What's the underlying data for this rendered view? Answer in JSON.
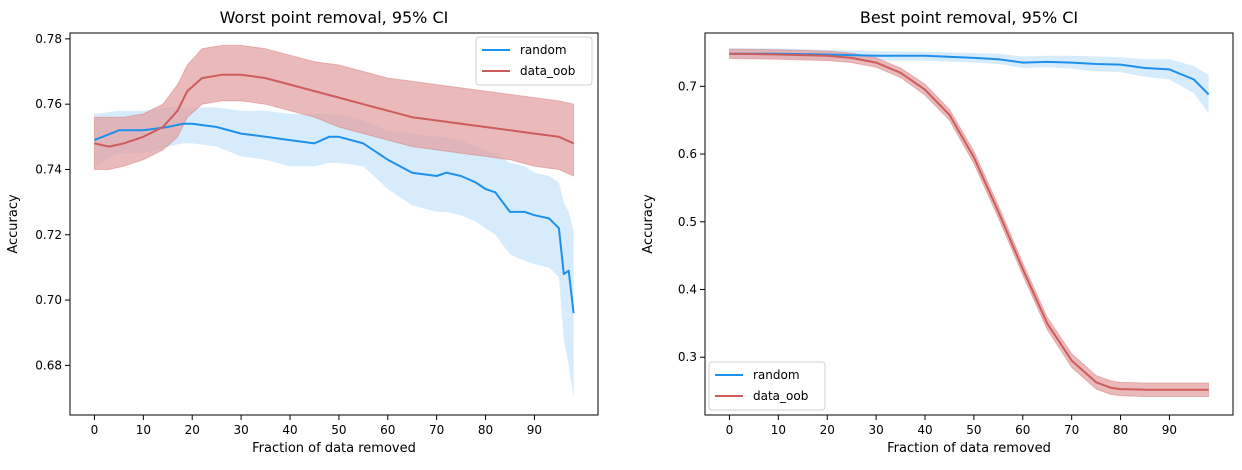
{
  "colors": {
    "random": "#1e90ec",
    "random_band": "#cfe9fb",
    "data_oob": "#cd5c5c",
    "data_oob_band": "#e3a3a3"
  },
  "chart_data": [
    {
      "type": "line",
      "title": "Worst point removal, 95% CI",
      "xlabel": "Fraction of data removed",
      "ylabel": "Accuracy",
      "xlim": [
        -5,
        103
      ],
      "ylim": [
        0.6648,
        0.7818
      ],
      "xticks": [
        0,
        10,
        20,
        30,
        40,
        50,
        60,
        70,
        80,
        90
      ],
      "xtick_labels": [
        "0",
        "10",
        "20",
        "30",
        "40",
        "50",
        "60",
        "70",
        "80",
        "90"
      ],
      "yticks": [
        0.68,
        0.7,
        0.72,
        0.74,
        0.76,
        0.78
      ],
      "ytick_labels": [
        "0.68",
        "0.70",
        "0.72",
        "0.74",
        "0.76",
        "0.78"
      ],
      "legend": {
        "placement": "top-right",
        "entries": [
          "random",
          "data_oob"
        ]
      },
      "series": [
        {
          "name": "random",
          "x": [
            0,
            5,
            10,
            15,
            18,
            20,
            25,
            30,
            35,
            40,
            45,
            48,
            50,
            55,
            60,
            65,
            70,
            72,
            75,
            78,
            80,
            82,
            85,
            88,
            90,
            93,
            95,
            96,
            97,
            98
          ],
          "y": [
            0.749,
            0.752,
            0.752,
            0.753,
            0.754,
            0.754,
            0.753,
            0.751,
            0.75,
            0.749,
            0.748,
            0.75,
            0.75,
            0.748,
            0.743,
            0.739,
            0.738,
            0.739,
            0.738,
            0.736,
            0.734,
            0.733,
            0.727,
            0.727,
            0.726,
            0.725,
            0.722,
            0.708,
            0.709,
            0.696
          ],
          "upper": [
            0.757,
            0.758,
            0.758,
            0.759,
            0.759,
            0.759,
            0.759,
            0.758,
            0.758,
            0.757,
            0.757,
            0.757,
            0.757,
            0.755,
            0.752,
            0.751,
            0.75,
            0.75,
            0.749,
            0.747,
            0.746,
            0.745,
            0.742,
            0.741,
            0.739,
            0.738,
            0.736,
            0.73,
            0.727,
            0.721
          ],
          "lower": [
            0.741,
            0.745,
            0.745,
            0.747,
            0.748,
            0.748,
            0.747,
            0.744,
            0.743,
            0.741,
            0.741,
            0.742,
            0.742,
            0.741,
            0.734,
            0.729,
            0.727,
            0.727,
            0.726,
            0.724,
            0.722,
            0.72,
            0.714,
            0.712,
            0.711,
            0.71,
            0.707,
            0.688,
            0.68,
            0.67
          ]
        },
        {
          "name": "data_oob",
          "x": [
            0,
            3,
            6,
            10,
            14,
            17,
            19,
            22,
            26,
            30,
            35,
            40,
            45,
            50,
            55,
            60,
            65,
            70,
            75,
            80,
            85,
            90,
            95,
            98
          ],
          "y": [
            0.748,
            0.747,
            0.748,
            0.75,
            0.753,
            0.758,
            0.764,
            0.768,
            0.769,
            0.769,
            0.768,
            0.766,
            0.764,
            0.762,
            0.76,
            0.758,
            0.756,
            0.755,
            0.754,
            0.753,
            0.752,
            0.751,
            0.75,
            0.748
          ],
          "upper": [
            0.756,
            0.756,
            0.756,
            0.757,
            0.76,
            0.766,
            0.772,
            0.777,
            0.778,
            0.778,
            0.777,
            0.775,
            0.773,
            0.772,
            0.77,
            0.768,
            0.767,
            0.766,
            0.765,
            0.764,
            0.763,
            0.762,
            0.761,
            0.76
          ],
          "lower": [
            0.74,
            0.74,
            0.741,
            0.743,
            0.746,
            0.75,
            0.756,
            0.76,
            0.761,
            0.761,
            0.76,
            0.758,
            0.756,
            0.753,
            0.751,
            0.749,
            0.747,
            0.746,
            0.745,
            0.744,
            0.743,
            0.741,
            0.74,
            0.738
          ]
        }
      ]
    },
    {
      "type": "line",
      "title": "Best point removal, 95% CI",
      "xlabel": "Fraction of data removed",
      "ylabel": "Accuracy",
      "xlim": [
        -5,
        103
      ],
      "ylim": [
        0.2147,
        0.7787
      ],
      "xticks": [
        0,
        10,
        20,
        30,
        40,
        50,
        60,
        70,
        80,
        90
      ],
      "xtick_labels": [
        "0",
        "10",
        "20",
        "30",
        "40",
        "50",
        "60",
        "70",
        "80",
        "90"
      ],
      "yticks": [
        0.3,
        0.4,
        0.5,
        0.6,
        0.7
      ],
      "ytick_labels": [
        "0.3",
        "0.4",
        "0.5",
        "0.6",
        "0.7"
      ],
      "legend": {
        "placement": "bottom-left",
        "entries": [
          "random",
          "data_oob"
        ]
      },
      "series": [
        {
          "name": "random",
          "x": [
            0,
            10,
            20,
            30,
            40,
            50,
            55,
            60,
            65,
            70,
            75,
            80,
            85,
            90,
            95,
            98
          ],
          "y": [
            0.748,
            0.748,
            0.747,
            0.745,
            0.745,
            0.742,
            0.74,
            0.735,
            0.736,
            0.735,
            0.733,
            0.732,
            0.727,
            0.725,
            0.71,
            0.688
          ],
          "upper": [
            0.756,
            0.756,
            0.754,
            0.752,
            0.751,
            0.749,
            0.748,
            0.744,
            0.745,
            0.745,
            0.744,
            0.743,
            0.74,
            0.74,
            0.73,
            0.717
          ],
          "lower": [
            0.741,
            0.741,
            0.74,
            0.738,
            0.738,
            0.735,
            0.733,
            0.727,
            0.728,
            0.726,
            0.722,
            0.721,
            0.714,
            0.71,
            0.69,
            0.66
          ]
        },
        {
          "name": "data_oob",
          "x": [
            0,
            10,
            20,
            25,
            30,
            35,
            40,
            45,
            50,
            55,
            60,
            65,
            70,
            75,
            78,
            80,
            85,
            90,
            95,
            98
          ],
          "y": [
            0.748,
            0.747,
            0.745,
            0.742,
            0.735,
            0.72,
            0.695,
            0.658,
            0.595,
            0.515,
            0.43,
            0.35,
            0.295,
            0.263,
            0.255,
            0.253,
            0.252,
            0.252,
            0.252,
            0.252
          ],
          "upper": [
            0.755,
            0.754,
            0.752,
            0.749,
            0.742,
            0.727,
            0.703,
            0.666,
            0.604,
            0.524,
            0.439,
            0.359,
            0.305,
            0.273,
            0.265,
            0.263,
            0.262,
            0.262,
            0.262,
            0.262
          ],
          "lower": [
            0.741,
            0.74,
            0.738,
            0.735,
            0.728,
            0.713,
            0.687,
            0.65,
            0.586,
            0.506,
            0.421,
            0.341,
            0.285,
            0.253,
            0.245,
            0.243,
            0.242,
            0.242,
            0.242,
            0.242
          ]
        }
      ]
    }
  ]
}
